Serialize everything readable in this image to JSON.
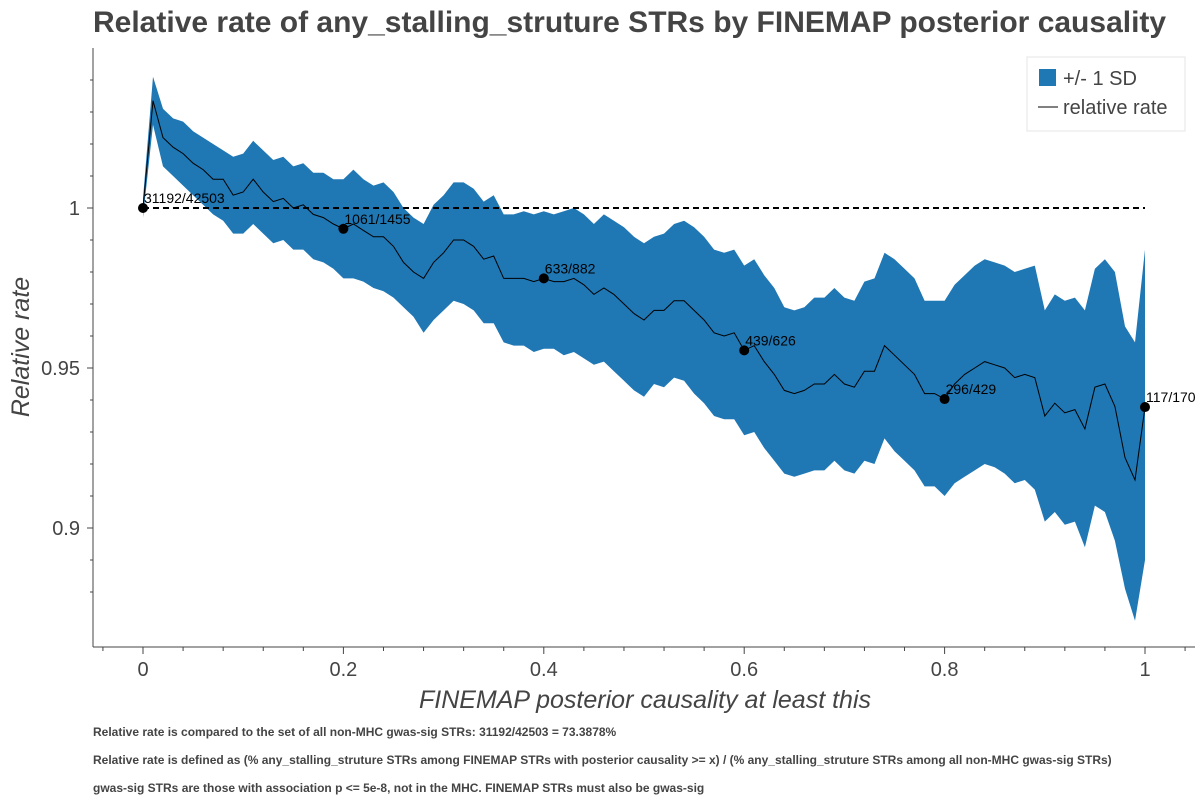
{
  "chart_data": {
    "type": "line",
    "title": "Relative rate of any_stalling_struture STRs by FINEMAP posterior causality",
    "xlabel": "FINEMAP posterior causality at least this",
    "ylabel": "Relative rate",
    "xlim": [
      -0.04,
      1.04
    ],
    "ylim": [
      0.8735,
      1.0475
    ],
    "x_ticks": [
      0,
      0.2,
      0.4,
      0.6,
      0.8,
      1
    ],
    "x_tick_labels": [
      "0",
      "0.2",
      "0.4",
      "0.6",
      "0.8",
      "1"
    ],
    "y_ticks": [
      0.9,
      0.95,
      1
    ],
    "y_tick_labels": [
      "0.9",
      "0.95",
      "1"
    ],
    "reference_line": {
      "y": 1,
      "x_range": [
        0,
        1
      ],
      "style": "dashed"
    },
    "legend": {
      "position": "top-right",
      "items": [
        {
          "label": "+/- 1 SD",
          "kind": "band",
          "color": "#1f77b4"
        },
        {
          "label": "relative rate",
          "kind": "line",
          "color": "#000000"
        }
      ]
    },
    "series": [
      {
        "name": "relative rate",
        "color": "#000000",
        "x": [
          0.0,
          0.01,
          0.02,
          0.03,
          0.04,
          0.05,
          0.06,
          0.07,
          0.08,
          0.09,
          0.1,
          0.11,
          0.12,
          0.13,
          0.14,
          0.15,
          0.16,
          0.17,
          0.18,
          0.19,
          0.2,
          0.21,
          0.22,
          0.23,
          0.24,
          0.25,
          0.26,
          0.27,
          0.28,
          0.29,
          0.3,
          0.31,
          0.32,
          0.33,
          0.34,
          0.35,
          0.36,
          0.37,
          0.38,
          0.39,
          0.4,
          0.41,
          0.42,
          0.43,
          0.44,
          0.45,
          0.46,
          0.47,
          0.48,
          0.49,
          0.5,
          0.51,
          0.52,
          0.53,
          0.54,
          0.55,
          0.56,
          0.57,
          0.58,
          0.59,
          0.6,
          0.61,
          0.62,
          0.63,
          0.64,
          0.65,
          0.66,
          0.67,
          0.68,
          0.69,
          0.7,
          0.71,
          0.72,
          0.73,
          0.74,
          0.75,
          0.76,
          0.77,
          0.78,
          0.79,
          0.8,
          0.81,
          0.82,
          0.83,
          0.84,
          0.85,
          0.86,
          0.87,
          0.88,
          0.89,
          0.9,
          0.91,
          0.92,
          0.93,
          0.94,
          0.95,
          0.96,
          0.97,
          0.98,
          0.99,
          1.0
        ],
        "y": [
          1.0,
          1.0335,
          1.022,
          1.019,
          1.017,
          1.014,
          1.012,
          1.009,
          1.009,
          1.004,
          1.005,
          1.009,
          1.005,
          1.002,
          1.003,
          1.0,
          1.001,
          0.998,
          0.997,
          0.995,
          0.9935,
          0.995,
          0.993,
          0.991,
          0.991,
          0.988,
          0.983,
          0.98,
          0.978,
          0.983,
          0.986,
          0.99,
          0.99,
          0.988,
          0.984,
          0.985,
          0.978,
          0.978,
          0.978,
          0.977,
          0.978,
          0.977,
          0.977,
          0.978,
          0.976,
          0.973,
          0.975,
          0.973,
          0.97,
          0.967,
          0.965,
          0.968,
          0.968,
          0.971,
          0.971,
          0.968,
          0.965,
          0.961,
          0.96,
          0.961,
          0.9555,
          0.957,
          0.952,
          0.948,
          0.943,
          0.942,
          0.943,
          0.945,
          0.945,
          0.948,
          0.945,
          0.944,
          0.949,
          0.949,
          0.957,
          0.954,
          0.951,
          0.948,
          0.942,
          0.942,
          0.9403,
          0.945,
          0.948,
          0.95,
          0.952,
          0.951,
          0.95,
          0.947,
          0.948,
          0.947,
          0.935,
          0.939,
          0.936,
          0.937,
          0.931,
          0.944,
          0.945,
          0.938,
          0.922,
          0.915,
          0.9378
        ]
      },
      {
        "name": "+/- 1 SD",
        "color": "#1f77b4",
        "x": [
          0.0,
          0.01,
          0.02,
          0.03,
          0.04,
          0.05,
          0.06,
          0.07,
          0.08,
          0.09,
          0.1,
          0.11,
          0.12,
          0.13,
          0.14,
          0.15,
          0.16,
          0.17,
          0.18,
          0.19,
          0.2,
          0.21,
          0.22,
          0.23,
          0.24,
          0.25,
          0.26,
          0.27,
          0.28,
          0.29,
          0.3,
          0.31,
          0.32,
          0.33,
          0.34,
          0.35,
          0.36,
          0.37,
          0.38,
          0.39,
          0.4,
          0.41,
          0.42,
          0.43,
          0.44,
          0.45,
          0.46,
          0.47,
          0.48,
          0.49,
          0.5,
          0.51,
          0.52,
          0.53,
          0.54,
          0.55,
          0.56,
          0.57,
          0.58,
          0.59,
          0.6,
          0.61,
          0.62,
          0.63,
          0.64,
          0.65,
          0.66,
          0.67,
          0.68,
          0.69,
          0.7,
          0.71,
          0.72,
          0.73,
          0.74,
          0.75,
          0.76,
          0.77,
          0.78,
          0.79,
          0.8,
          0.81,
          0.82,
          0.83,
          0.84,
          0.85,
          0.86,
          0.87,
          0.88,
          0.89,
          0.9,
          0.91,
          0.92,
          0.93,
          0.94,
          0.95,
          0.96,
          0.97,
          0.98,
          0.99,
          1.0
        ],
        "lower": [
          0.997,
          1.026,
          1.013,
          1.01,
          1.007,
          1.004,
          1.001,
          0.998,
          0.996,
          0.992,
          0.992,
          0.995,
          0.992,
          0.989,
          0.99,
          0.987,
          0.987,
          0.984,
          0.983,
          0.981,
          0.978,
          0.978,
          0.977,
          0.975,
          0.974,
          0.972,
          0.969,
          0.966,
          0.961,
          0.965,
          0.968,
          0.971,
          0.97,
          0.968,
          0.964,
          0.964,
          0.958,
          0.957,
          0.957,
          0.955,
          0.956,
          0.956,
          0.954,
          0.955,
          0.953,
          0.951,
          0.952,
          0.949,
          0.946,
          0.943,
          0.941,
          0.945,
          0.944,
          0.947,
          0.946,
          0.942,
          0.939,
          0.935,
          0.934,
          0.934,
          0.929,
          0.93,
          0.925,
          0.921,
          0.917,
          0.916,
          0.917,
          0.918,
          0.918,
          0.921,
          0.918,
          0.917,
          0.921,
          0.92,
          0.928,
          0.924,
          0.921,
          0.918,
          0.913,
          0.913,
          0.91,
          0.914,
          0.916,
          0.918,
          0.92,
          0.919,
          0.917,
          0.914,
          0.915,
          0.912,
          0.902,
          0.905,
          0.901,
          0.902,
          0.894,
          0.907,
          0.905,
          0.896,
          0.881,
          0.871,
          0.89
        ],
        "upper": [
          1.003,
          1.041,
          1.031,
          1.028,
          1.027,
          1.024,
          1.022,
          1.02,
          1.018,
          1.016,
          1.017,
          1.021,
          1.018,
          1.015,
          1.016,
          1.013,
          1.014,
          1.011,
          1.011,
          1.009,
          1.009,
          1.012,
          1.009,
          1.007,
          1.008,
          1.005,
          1.0,
          0.997,
          0.995,
          1.001,
          1.004,
          1.008,
          1.008,
          1.006,
          1.002,
          1.004,
          0.998,
          0.998,
          0.999,
          0.998,
          0.999,
          0.998,
          0.999,
          1.0,
          0.998,
          0.995,
          0.998,
          0.996,
          0.994,
          0.991,
          0.989,
          0.991,
          0.992,
          0.995,
          0.996,
          0.994,
          0.991,
          0.987,
          0.986,
          0.987,
          0.982,
          0.984,
          0.979,
          0.975,
          0.969,
          0.968,
          0.969,
          0.972,
          0.972,
          0.975,
          0.972,
          0.971,
          0.977,
          0.978,
          0.986,
          0.984,
          0.981,
          0.978,
          0.971,
          0.971,
          0.971,
          0.976,
          0.979,
          0.982,
          0.984,
          0.983,
          0.982,
          0.98,
          0.981,
          0.982,
          0.968,
          0.973,
          0.971,
          0.972,
          0.968,
          0.981,
          0.984,
          0.98,
          0.963,
          0.958,
          0.987
        ]
      }
    ],
    "points": [
      {
        "x": 0.0,
        "y": 1.0,
        "label": "31192/42503"
      },
      {
        "x": 0.2,
        "y": 0.9935,
        "label": "1061/1455"
      },
      {
        "x": 0.4,
        "y": 0.978,
        "label": "633/882"
      },
      {
        "x": 0.6,
        "y": 0.9555,
        "label": "439/626"
      },
      {
        "x": 0.8,
        "y": 0.9403,
        "label": "296/429"
      },
      {
        "x": 1.0,
        "y": 0.9378,
        "label": "117/170"
      }
    ],
    "notes": [
      "Relative rate is compared to the set of all non-MHC gwas-sig STRs: 31192/42503 = 73.3878%",
      "Relative rate is defined as (% any_stalling_struture STRs among FINEMAP STRs with posterior causality >= x) / (% any_stalling_struture STRs among all non-MHC gwas-sig STRs)",
      "gwas-sig STRs are those with association p <= 5e-8, not in the MHC. FINEMAP STRs must also be gwas-sig"
    ]
  }
}
